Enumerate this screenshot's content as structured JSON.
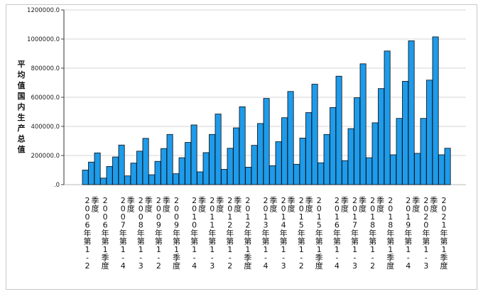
{
  "chart_data": {
    "type": "bar",
    "title": "",
    "xlabel": "",
    "ylabel": "平均值国内生产总值",
    "ylim": [
      0,
      1200000
    ],
    "yticks": [
      ".0",
      "200000.0",
      "400000.0",
      "600000.0",
      "800000.0",
      "1000000.0",
      "1200000.0"
    ],
    "grid": true,
    "legend": "none",
    "bar_color": "#1e9bea",
    "bar_edge_color": "#0a0a0a",
    "grid_color": "#d4d4d4",
    "x_tick_labels": [
      "2006年第1-2季度",
      "2006年第1季度",
      "2007年第1-4季度",
      "2008年第1-3季度",
      "2009年第1-2季度",
      "2009年第1季度",
      "2010年第1-4季度",
      "2011年第1-3季度",
      "2012年第1-2季度",
      "2012年第1季度",
      "2013年第1-4季度",
      "2014年第1-3季度",
      "2015年第1-2季度",
      "2015年第1季度",
      "2016年第1-4季度",
      "2017年第1-3季度",
      "2018年第1-2季度",
      "2018年第1季度",
      "2019年第1-4季度",
      "2020年第1-3季度",
      "2021年第1季度"
    ],
    "values": [
      100000,
      155000,
      218000,
      45000,
      125000,
      190000,
      272000,
      60000,
      148000,
      230000,
      318000,
      68000,
      160000,
      248000,
      345000,
      75000,
      185000,
      290000,
      410000,
      88000,
      220000,
      345000,
      485000,
      105000,
      250000,
      390000,
      535000,
      120000,
      270000,
      420000,
      592000,
      130000,
      295000,
      460000,
      640000,
      140000,
      320000,
      495000,
      690000,
      150000,
      345000,
      530000,
      745000,
      165000,
      385000,
      597000,
      830000,
      185000,
      425000,
      660000,
      918000,
      205000,
      455000,
      710000,
      988000,
      215000,
      455000,
      718000,
      1015000,
      205000,
      250000
    ]
  }
}
